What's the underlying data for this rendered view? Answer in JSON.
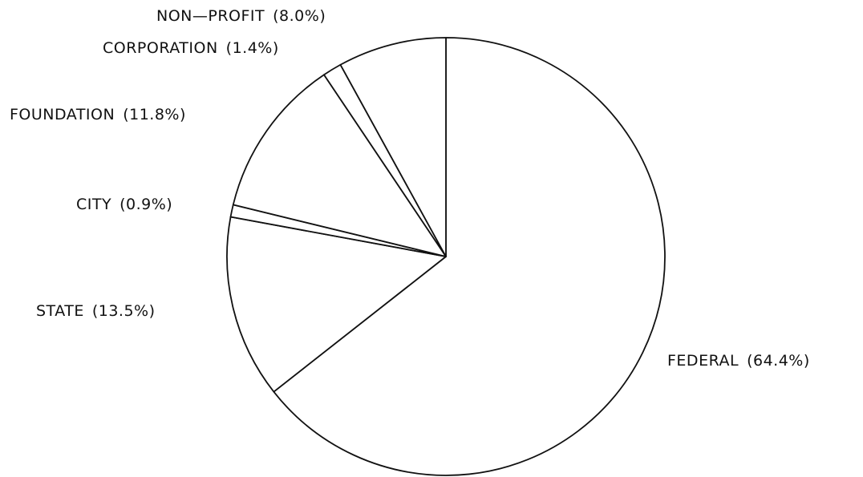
{
  "chart_data": {
    "type": "pie",
    "categories": [
      "FEDERAL",
      "STATE",
      "CITY",
      "FOUNDATION",
      "CORPORATION",
      "NON—PROFIT"
    ],
    "values": [
      64.4,
      13.5,
      0.9,
      11.8,
      1.4,
      8.0
    ],
    "value_labels": [
      "(64.4%)",
      "(13.5%)",
      "(0.9%)",
      "(11.8%)",
      "(1.4%)",
      "(8.0%)"
    ],
    "color": "#ffffff"
  }
}
